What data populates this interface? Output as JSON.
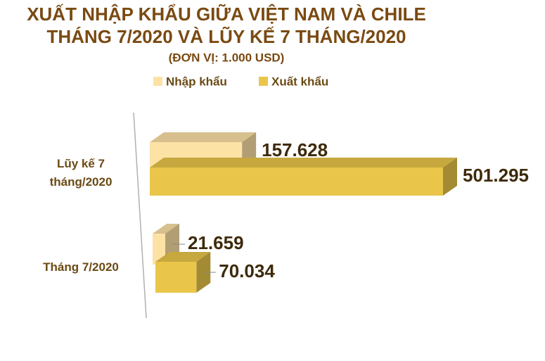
{
  "chart_data": {
    "type": "bar3d-horizontal",
    "title": [
      "XUẤT NHẬP KHẨU GIỮA VIỆT NAM VÀ CHILE",
      "THÁNG 7/2020 VÀ LŨY KẾ 7 THÁNG/2020"
    ],
    "subtitle": "(ĐƠN VỊ: 1.000 USD)",
    "categories": [
      "Lũy kế 7 tháng/2020",
      "Tháng 7/2020"
    ],
    "series": [
      {
        "name": "Nhập khẩu",
        "color": "#fde2a6",
        "values": [
          157628,
          21659
        ],
        "value_labels": [
          "157.628",
          "21.659"
        ]
      },
      {
        "name": "Xuất khẩu",
        "color": "#e9c64a",
        "values": [
          501295,
          70034
        ],
        "value_labels": [
          "501.295",
          "70.034"
        ]
      }
    ]
  }
}
